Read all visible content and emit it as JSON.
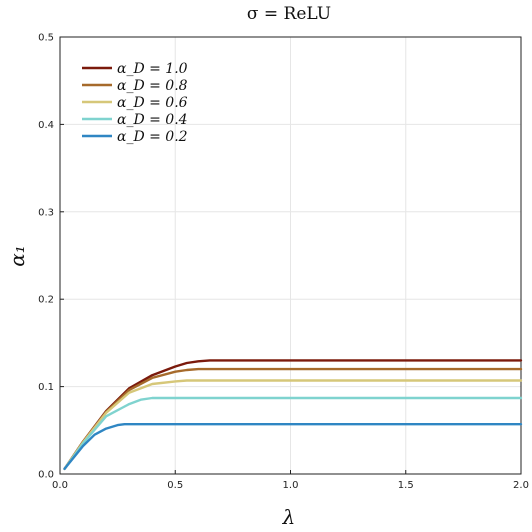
{
  "chart_data": {
    "type": "line",
    "title": "σ = ReLU",
    "xlabel": "λ",
    "ylabel": "α₁",
    "xlim": [
      0,
      2
    ],
    "ylim": [
      0,
      0.5
    ],
    "xticks": [
      0,
      0.5,
      1,
      1.5,
      2
    ],
    "xtick_labels": [
      "0.0",
      "0.5",
      "1.0",
      "1.5",
      "2.0"
    ],
    "yticks": [
      0,
      0.1,
      0.2,
      0.3,
      0.4,
      0.5
    ],
    "ytick_labels": [
      "0.0",
      "0.1",
      "0.2",
      "0.3",
      "0.4",
      "0.5"
    ],
    "grid": true,
    "legend_position": "top-left",
    "series": [
      {
        "name": "α_D = 1.0",
        "color": "#7b1a0c",
        "x": [
          0.02,
          0.1,
          0.2,
          0.3,
          0.4,
          0.5,
          0.55,
          0.6,
          0.65,
          1.0,
          1.5,
          2.0
        ],
        "y": [
          0.006,
          0.037,
          0.072,
          0.098,
          0.113,
          0.123,
          0.127,
          0.129,
          0.13,
          0.13,
          0.13,
          0.13
        ]
      },
      {
        "name": "α_D = 0.8",
        "color": "#a66a2b",
        "x": [
          0.02,
          0.1,
          0.2,
          0.3,
          0.4,
          0.5,
          0.55,
          0.6,
          1.0,
          1.5,
          2.0
        ],
        "y": [
          0.006,
          0.037,
          0.071,
          0.096,
          0.11,
          0.117,
          0.119,
          0.12,
          0.12,
          0.12,
          0.12
        ]
      },
      {
        "name": "α_D = 0.6",
        "color": "#d6c779",
        "x": [
          0.02,
          0.1,
          0.2,
          0.3,
          0.4,
          0.5,
          0.55,
          1.0,
          1.5,
          2.0
        ],
        "y": [
          0.006,
          0.036,
          0.07,
          0.093,
          0.103,
          0.106,
          0.107,
          0.107,
          0.107,
          0.107
        ]
      },
      {
        "name": "α_D = 0.4",
        "color": "#7fd3cf",
        "x": [
          0.02,
          0.1,
          0.2,
          0.3,
          0.35,
          0.4,
          0.45,
          1.0,
          1.5,
          2.0
        ],
        "y": [
          0.006,
          0.035,
          0.066,
          0.08,
          0.085,
          0.087,
          0.087,
          0.087,
          0.087,
          0.087
        ]
      },
      {
        "name": "α_D = 0.2",
        "color": "#2f86c3",
        "x": [
          0.02,
          0.1,
          0.15,
          0.2,
          0.25,
          0.28,
          0.3,
          1.0,
          1.5,
          2.0
        ],
        "y": [
          0.006,
          0.032,
          0.045,
          0.052,
          0.056,
          0.057,
          0.057,
          0.057,
          0.057,
          0.057
        ]
      }
    ]
  }
}
